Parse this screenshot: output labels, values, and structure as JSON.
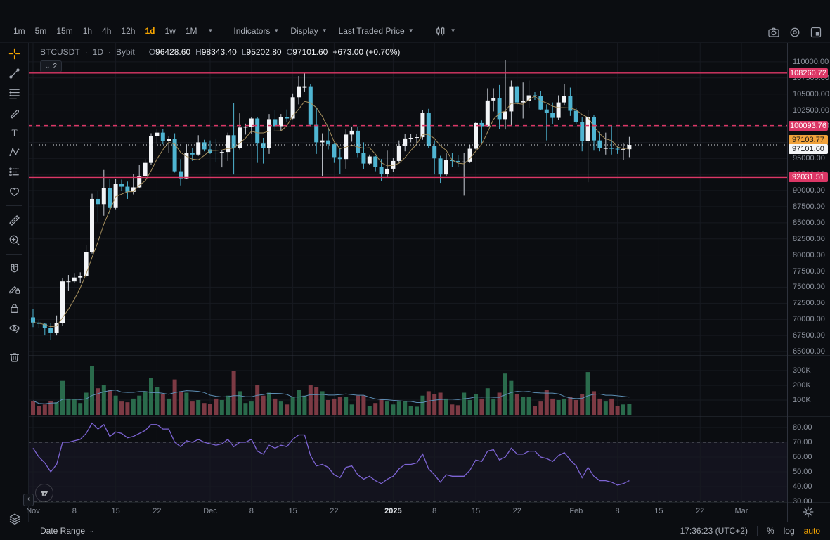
{
  "toolbar": {
    "timeframes": [
      {
        "label": "1m",
        "active": false
      },
      {
        "label": "5m",
        "active": false
      },
      {
        "label": "15m",
        "active": false
      },
      {
        "label": "1h",
        "active": false
      },
      {
        "label": "4h",
        "active": false
      },
      {
        "label": "12h",
        "active": false
      },
      {
        "label": "1d",
        "active": true
      },
      {
        "label": "1w",
        "active": false
      },
      {
        "label": "1M",
        "active": false
      }
    ],
    "menus": [
      {
        "label": "Indicators"
      },
      {
        "label": "Display"
      },
      {
        "label": "Last Traded Price"
      }
    ]
  },
  "legend": {
    "symbol": "BTCUSDT",
    "dot1": "·",
    "interval": "1D",
    "dot2": "·",
    "exchange": "Bybit",
    "open_label": "O",
    "open": "96428.60",
    "high_label": "H",
    "high": "98343.40",
    "low_label": "L",
    "low": "95202.80",
    "close_label": "C",
    "close": "97101.60",
    "change": "+673.00 (+0.70%)",
    "collapsed_count": "2"
  },
  "sidebar": {
    "active": "crosshair",
    "groups": [
      [
        "crosshair",
        "trend-line",
        "fib-retracement",
        "brush",
        "text",
        "xabcd-pattern",
        "forecast",
        "emoji"
      ],
      [
        "ruler",
        "zoom-in"
      ],
      [
        "magnet",
        "draw-lock",
        "lock-all",
        "hide-drawings"
      ],
      [
        "remove-drawings"
      ]
    ]
  },
  "price_scale": {
    "ticks": [
      {
        "label": "110000.00",
        "price": 110000
      },
      {
        "label": "107500.00",
        "price": 107500
      },
      {
        "label": "105000.00",
        "price": 105000
      },
      {
        "label": "102500.00",
        "price": 102500
      },
      {
        "label": "100000.00",
        "price": 100000
      },
      {
        "label": "97500.00",
        "price": 97500
      },
      {
        "label": "95000.00",
        "price": 95000
      },
      {
        "label": "92500.00",
        "price": 92500
      },
      {
        "label": "90000.00",
        "price": 90000
      },
      {
        "label": "87500.00",
        "price": 87500
      },
      {
        "label": "85000.00",
        "price": 85000
      },
      {
        "label": "82500.00",
        "price": 82500
      },
      {
        "label": "80000.00",
        "price": 80000
      },
      {
        "label": "77500.00",
        "price": 77500
      },
      {
        "label": "75000.00",
        "price": 75000
      },
      {
        "label": "72500.00",
        "price": 72500
      },
      {
        "label": "70000.00",
        "price": 70000
      },
      {
        "label": "67500.00",
        "price": 67500
      },
      {
        "label": "65000.00",
        "price": 65000
      }
    ],
    "badges": [
      {
        "label": "108260.72",
        "price": 108260.72,
        "type": "pink",
        "offset": -7
      },
      {
        "label": "100093.76",
        "price": 100093.76,
        "type": "pink",
        "offset": -7
      },
      {
        "label": "97103.77",
        "price": 97103.77,
        "type": "orange",
        "offset": -14
      },
      {
        "label": "97101.60",
        "price": 97101.6,
        "type": "white",
        "offset": -1
      },
      {
        "label": "92031.51",
        "price": 92031.51,
        "type": "pink",
        "offset": -7
      }
    ]
  },
  "volume_scale": {
    "ticks": [
      {
        "label": "300K",
        "value": 300
      },
      {
        "label": "200K",
        "value": 200
      },
      {
        "label": "100K",
        "value": 100
      }
    ]
  },
  "rsi_scale": {
    "ticks": [
      {
        "label": "80.00",
        "value": 80
      },
      {
        "label": "70.00",
        "value": 70
      },
      {
        "label": "60.00",
        "value": 60
      },
      {
        "label": "50.00",
        "value": 50
      },
      {
        "label": "40.00",
        "value": 40
      },
      {
        "label": "30.00",
        "value": 30
      }
    ]
  },
  "time_scale": {
    "ticks": [
      {
        "label": "Nov",
        "index": 0
      },
      {
        "label": "8",
        "index": 7
      },
      {
        "label": "15",
        "index": 14
      },
      {
        "label": "22",
        "index": 21
      },
      {
        "label": "Dec",
        "index": 30
      },
      {
        "label": "8",
        "index": 37
      },
      {
        "label": "15",
        "index": 44
      },
      {
        "label": "22",
        "index": 51
      },
      {
        "label": "2025",
        "index": 61,
        "emphasis": true
      },
      {
        "label": "8",
        "index": 68
      },
      {
        "label": "15",
        "index": 75
      },
      {
        "label": "22",
        "index": 82
      },
      {
        "label": "Feb",
        "index": 92
      },
      {
        "label": "8",
        "index": 99
      },
      {
        "label": "15",
        "index": 106
      },
      {
        "label": "22",
        "index": 113
      },
      {
        "label": "Mar",
        "index": 120
      }
    ]
  },
  "bottom_bar": {
    "date_range": "Date Range",
    "clock": "17:36:23 (UTC+2)",
    "percent": "%",
    "log": "log",
    "auto": "auto"
  },
  "colors": {
    "accent_orange": "#f7a600",
    "level_pink": "#dc3766",
    "candle_up": "#f2f4f7",
    "candle_up_wick": "#c8cdd5",
    "candle_down": "#4fb5d2",
    "volume_up": "#2a6b4c",
    "volume_down": "#7c3a44",
    "rsi_line": "#7d64d4",
    "price_ma": "#a8915f",
    "volume_ma": "#5d8fb5",
    "grid": "#171a21",
    "separator": "#2e323c",
    "current_price_line": "#d7dade",
    "rsi_band_dash": "#b7bbc4"
  },
  "chart_data": {
    "type": "candlestick",
    "symbol": "BTCUSDT",
    "interval": "1D",
    "exchange": "Bybit",
    "start_date": "2024-11-01",
    "panes": [
      "price",
      "volume",
      "rsi"
    ],
    "y_axis": {
      "min": 65000,
      "max": 110000,
      "step": 2500
    },
    "volume_axis": {
      "ticks_k": [
        100,
        200,
        300
      ]
    },
    "rsi_axis": {
      "min": 30,
      "max": 80,
      "overbought": 70,
      "oversold": 30
    },
    "levels": [
      {
        "price": 108260.72,
        "style": "solid"
      },
      {
        "price": 100093.76,
        "style": "dashed"
      },
      {
        "price": 92031.51,
        "style": "solid"
      }
    ],
    "last_price": 97101.6,
    "last_traded_price": 97103.77,
    "candles": [
      [
        70300,
        71600,
        68800,
        69500
      ],
      [
        69500,
        69900,
        68700,
        69300
      ],
      [
        69300,
        69400,
        67500,
        68700
      ],
      [
        68700,
        69400,
        66800,
        67900
      ],
      [
        67900,
        70600,
        67500,
        69400
      ],
      [
        69400,
        76400,
        69000,
        75900
      ],
      [
        75900,
        76900,
        74400,
        75900
      ],
      [
        75900,
        77200,
        75600,
        76500
      ],
      [
        76500,
        77300,
        75700,
        76700
      ],
      [
        76700,
        81500,
        76500,
        80400
      ],
      [
        80400,
        89500,
        80200,
        88700
      ],
      [
        88700,
        89900,
        85100,
        87900
      ],
      [
        87900,
        93200,
        86100,
        90400
      ],
      [
        90400,
        91800,
        86300,
        87300
      ],
      [
        87300,
        91800,
        87100,
        91000
      ],
      [
        91000,
        91700,
        90000,
        90600
      ],
      [
        90600,
        91400,
        88700,
        89800
      ],
      [
        89800,
        92600,
        89400,
        90500
      ],
      [
        90500,
        94000,
        90400,
        92300
      ],
      [
        92300,
        94900,
        91800,
        94300
      ],
      [
        94300,
        98900,
        94000,
        98500
      ],
      [
        98500,
        99500,
        97200,
        99000
      ],
      [
        99000,
        99600,
        97200,
        97700
      ],
      [
        97700,
        98500,
        95800,
        98000
      ],
      [
        98000,
        98900,
        92800,
        93000
      ],
      [
        93000,
        94900,
        90800,
        91900
      ],
      [
        91900,
        97200,
        91800,
        95900
      ],
      [
        95900,
        96600,
        94600,
        95600
      ],
      [
        95600,
        98600,
        95400,
        97500
      ],
      [
        97500,
        97900,
        96100,
        96400
      ],
      [
        96400,
        97800,
        95700,
        95900
      ],
      [
        95900,
        98100,
        94400,
        95800
      ],
      [
        95800,
        96300,
        93600,
        96000
      ],
      [
        96000,
        99000,
        94600,
        98600
      ],
      [
        98600,
        103600,
        92500,
        96600
      ],
      [
        96600,
        102000,
        96400,
        99800
      ],
      [
        99800,
        100400,
        98700,
        99900
      ],
      [
        99900,
        101400,
        98800,
        101200
      ],
      [
        101200,
        101400,
        94300,
        97300
      ],
      [
        97300,
        98200,
        94200,
        96600
      ],
      [
        96600,
        101900,
        95700,
        101100
      ],
      [
        101100,
        102500,
        99300,
        100000
      ],
      [
        100000,
        101900,
        99200,
        101400
      ],
      [
        101400,
        102600,
        100600,
        101200
      ],
      [
        101200,
        105100,
        101100,
        104500
      ],
      [
        104500,
        107800,
        103400,
        106100
      ],
      [
        106100,
        108300,
        105300,
        106100
      ],
      [
        106100,
        106500,
        100000,
        100200
      ],
      [
        100200,
        102800,
        95700,
        97500
      ],
      [
        97500,
        98900,
        92300,
        97800
      ],
      [
        97800,
        99500,
        96400,
        97200
      ],
      [
        97200,
        97300,
        94300,
        95200
      ],
      [
        95200,
        96500,
        92600,
        94900
      ],
      [
        94900,
        99500,
        93400,
        98700
      ],
      [
        98700,
        99900,
        97600,
        99300
      ],
      [
        99300,
        99900,
        95200,
        95800
      ],
      [
        95800,
        97500,
        93300,
        94200
      ],
      [
        94200,
        95600,
        94000,
        95300
      ],
      [
        95300,
        95400,
        93000,
        93700
      ],
      [
        93700,
        94900,
        91500,
        92600
      ],
      [
        92600,
        96200,
        92000,
        93400
      ],
      [
        93400,
        95100,
        92900,
        94600
      ],
      [
        94600,
        97800,
        94300,
        96900
      ],
      [
        96900,
        98800,
        96100,
        98100
      ],
      [
        98100,
        98800,
        97500,
        98200
      ],
      [
        98200,
        98800,
        97300,
        98300
      ],
      [
        98300,
        102500,
        97900,
        102100
      ],
      [
        102100,
        102700,
        96600,
        96900
      ],
      [
        96900,
        97800,
        92500,
        95000
      ],
      [
        95000,
        95400,
        91200,
        92500
      ],
      [
        92500,
        95800,
        92200,
        94700
      ],
      [
        94700,
        95900,
        93700,
        94600
      ],
      [
        94600,
        95500,
        93700,
        94500
      ],
      [
        94500,
        95900,
        89200,
        94500
      ],
      [
        94500,
        97100,
        94300,
        96500
      ],
      [
        96500,
        100700,
        96400,
        100500
      ],
      [
        100500,
        100900,
        97300,
        100000
      ],
      [
        100000,
        105900,
        99900,
        104000
      ],
      [
        104000,
        105900,
        102300,
        104400
      ],
      [
        104400,
        106400,
        99600,
        101100
      ],
      [
        101100,
        110300,
        99500,
        102300
      ],
      [
        102300,
        107100,
        100100,
        106100
      ],
      [
        106100,
        106300,
        103400,
        103700
      ],
      [
        103700,
        106800,
        101200,
        103900
      ],
      [
        103900,
        107100,
        102800,
        104800
      ],
      [
        104800,
        105300,
        104100,
        104700
      ],
      [
        104700,
        105500,
        102500,
        102600
      ],
      [
        102600,
        103400,
        97800,
        102100
      ],
      [
        102100,
        103700,
        100300,
        101300
      ],
      [
        101300,
        104800,
        101000,
        103700
      ],
      [
        103700,
        106500,
        103200,
        104700
      ],
      [
        104700,
        106000,
        101600,
        102400
      ],
      [
        102400,
        102800,
        100400,
        100600
      ],
      [
        100600,
        101400,
        96100,
        97700
      ],
      [
        97700,
        102500,
        91300,
        101400
      ],
      [
        101400,
        101700,
        96200,
        97800
      ],
      [
        97800,
        99100,
        96100,
        96600
      ],
      [
        96600,
        99000,
        95600,
        96600
      ],
      [
        96600,
        100100,
        95600,
        96500
      ],
      [
        96500,
        96900,
        95700,
        96400
      ],
      [
        96400,
        97300,
        94700,
        96430
      ],
      [
        96428.6,
        98343.4,
        95202.8,
        97101.6
      ]
    ],
    "volumes_k": [
      95,
      60,
      70,
      95,
      85,
      230,
      110,
      105,
      80,
      150,
      330,
      180,
      200,
      170,
      130,
      90,
      85,
      110,
      130,
      160,
      250,
      190,
      140,
      110,
      240,
      160,
      150,
      90,
      100,
      80,
      75,
      110,
      100,
      130,
      300,
      160,
      80,
      90,
      200,
      130,
      150,
      110,
      90,
      70,
      120,
      170,
      130,
      200,
      190,
      160,
      100,
      110,
      120,
      120,
      70,
      130,
      130,
      60,
      80,
      110,
      90,
      70,
      90,
      90,
      60,
      55,
      130,
      160,
      140,
      150,
      110,
      70,
      65,
      150,
      100,
      140,
      110,
      180,
      110,
      150,
      280,
      230,
      140,
      120,
      120,
      60,
      90,
      170,
      110,
      100,
      110,
      120,
      100,
      140,
      290,
      160,
      110,
      90,
      110,
      60,
      70,
      75
    ],
    "rsi": [
      66,
      60,
      56,
      50,
      55,
      70,
      70,
      71,
      72,
      76,
      83,
      79,
      82,
      74,
      77,
      76,
      73,
      74,
      76,
      78,
      82,
      82,
      79,
      79,
      70,
      67,
      71,
      70,
      72,
      70,
      69,
      68,
      69,
      72,
      67,
      70,
      70,
      72,
      64,
      62,
      68,
      66,
      68,
      67,
      72,
      75,
      75,
      61,
      54,
      55,
      53,
      48,
      46,
      53,
      54,
      48,
      45,
      47,
      44,
      42,
      45,
      47,
      52,
      55,
      55,
      56,
      62,
      52,
      48,
      43,
      48,
      47,
      47,
      47,
      51,
      58,
      57,
      64,
      65,
      58,
      60,
      66,
      62,
      62,
      64,
      64,
      60,
      59,
      57,
      61,
      63,
      58,
      54,
      46,
      53,
      47,
      44,
      44,
      43,
      41,
      42,
      44
    ]
  }
}
